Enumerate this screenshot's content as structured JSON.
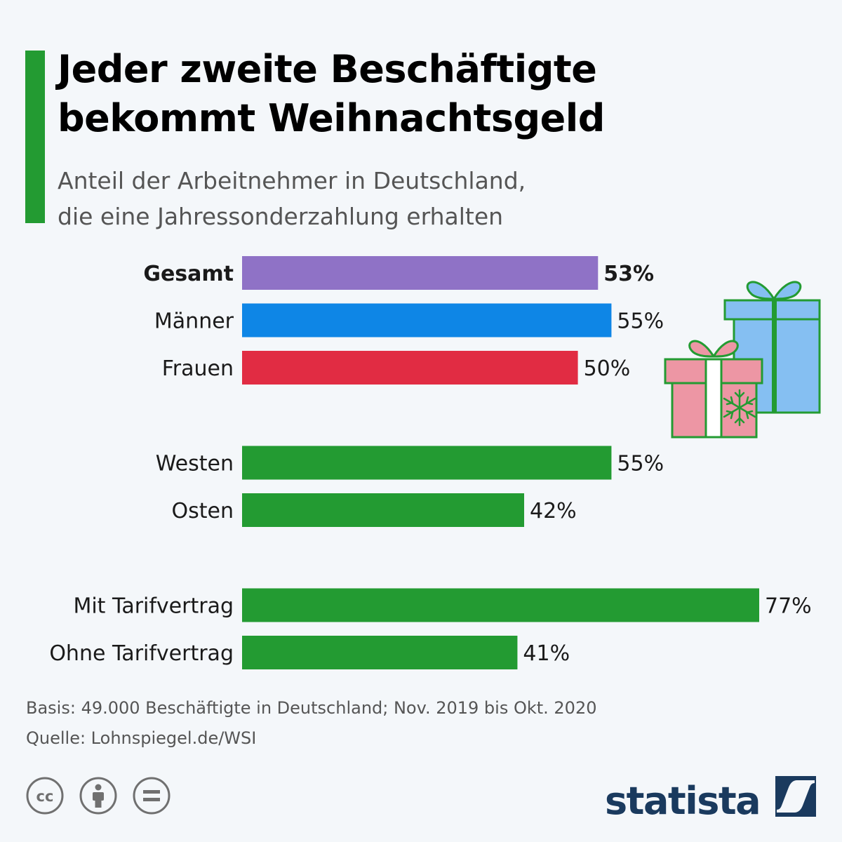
{
  "header": {
    "title_line1": "Jeder zweite Beschäftigte",
    "title_line2": "bekommt Weihnachtsgeld",
    "subtitle_line1": "Anteil der Arbeitnehmer in Deutschland,",
    "subtitle_line2": "die eine Jahressonderzahlung erhalten"
  },
  "colors": {
    "accent": "#239b32",
    "gesamt": "#8f72c6",
    "maenner": "#0e86e6",
    "frauen": "#e12c43",
    "green": "#239b32",
    "text": "#1a1a1a",
    "muted": "#555555",
    "brand": "#1a3a5e"
  },
  "chart_data": {
    "type": "bar",
    "orientation": "horizontal",
    "value_suffix": "%",
    "xlim": [
      0,
      77
    ],
    "categories": [
      "Gesamt",
      "Männer",
      "Frauen",
      "Westen",
      "Osten",
      "Mit Tarifvertrag",
      "Ohne Tarifvertrag"
    ],
    "values": [
      53,
      55,
      50,
      55,
      42,
      77,
      41
    ],
    "bar_colors": [
      "#8f72c6",
      "#0e86e6",
      "#e12c43",
      "#239b32",
      "#239b32",
      "#239b32",
      "#239b32"
    ],
    "bold_categories": [
      "Gesamt"
    ],
    "groups": [
      [
        0,
        1,
        2
      ],
      [
        3,
        4
      ],
      [
        5,
        6
      ]
    ],
    "grid": false,
    "legend": "none"
  },
  "footer": {
    "basis": "Basis: 49.000 Beschäftigte in Deutschland; Nov. 2019 bis Okt. 2020",
    "source": "Quelle: Lohnspiegel.de/WSI"
  },
  "icons": [
    "cc-icon",
    "attribution-icon",
    "no-derivatives-icon",
    "gift-icon"
  ],
  "cc_badges": [
    "cc",
    "by",
    "nd"
  ],
  "brand": {
    "name": "statista"
  }
}
